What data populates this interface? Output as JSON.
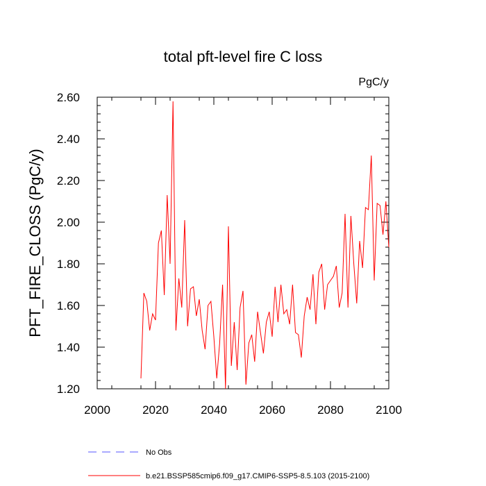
{
  "chart_data": {
    "type": "line",
    "title": "total pft-level fire C loss",
    "units": "PgC/y",
    "xlabel": "",
    "ylabel": "PFT_FIRE_CLOSS  (PgC/y)",
    "xlim": [
      2000,
      2100
    ],
    "ylim": [
      1.2,
      2.6
    ],
    "xticks": [
      2000,
      2020,
      2040,
      2060,
      2080,
      2100
    ],
    "xtick_labels": [
      "2000",
      "2020",
      "2040",
      "2060",
      "2080",
      "2100"
    ],
    "yticks": [
      1.2,
      1.4,
      1.6,
      1.8,
      2.0,
      2.2,
      2.4,
      2.6
    ],
    "ytick_labels": [
      "1.20",
      "1.40",
      "1.60",
      "1.80",
      "2.00",
      "2.20",
      "2.40",
      "2.60"
    ],
    "legend": [
      {
        "label": "No Obs",
        "color": "#5555ff",
        "style": "dashed"
      },
      {
        "label": "b.e21.BSSP585cmip6.f09_g17.CMIP6-SSP5-8.5.103 (2015-2100)",
        "color": "#ff0000",
        "style": "solid"
      }
    ],
    "series": [
      {
        "name": "b.e21.BSSP585cmip6.f09_g17.CMIP6-SSP5-8.5.103 (2015-2100)",
        "color": "#ff0000",
        "x": [
          2015,
          2016,
          2017,
          2018,
          2019,
          2020,
          2021,
          2022,
          2023,
          2024,
          2025,
          2026,
          2027,
          2028,
          2029,
          2030,
          2031,
          2032,
          2033,
          2034,
          2035,
          2036,
          2037,
          2038,
          2039,
          2040,
          2041,
          2042,
          2043,
          2044,
          2045,
          2046,
          2047,
          2048,
          2049,
          2050,
          2051,
          2052,
          2053,
          2054,
          2055,
          2056,
          2057,
          2058,
          2059,
          2060,
          2061,
          2062,
          2063,
          2064,
          2065,
          2066,
          2067,
          2068,
          2069,
          2070,
          2071,
          2072,
          2073,
          2074,
          2075,
          2076,
          2077,
          2078,
          2079,
          2080,
          2081,
          2082,
          2083,
          2084,
          2085,
          2086,
          2087,
          2088,
          2089,
          2090,
          2091,
          2092,
          2093,
          2094,
          2095,
          2096,
          2097,
          2098,
          2099,
          2100
        ],
        "values": [
          1.25,
          1.66,
          1.62,
          1.48,
          1.56,
          1.53,
          1.9,
          1.96,
          1.65,
          2.13,
          1.8,
          2.58,
          1.48,
          1.73,
          1.59,
          2.01,
          1.5,
          1.68,
          1.69,
          1.55,
          1.63,
          1.48,
          1.39,
          1.6,
          1.62,
          1.45,
          1.25,
          1.42,
          1.7,
          1.2,
          1.98,
          1.31,
          1.52,
          1.29,
          1.59,
          1.67,
          1.22,
          1.42,
          1.46,
          1.33,
          1.57,
          1.47,
          1.37,
          1.52,
          1.57,
          1.45,
          1.69,
          1.52,
          1.7,
          1.56,
          1.58,
          1.51,
          1.7,
          1.47,
          1.46,
          1.35,
          1.55,
          1.64,
          1.58,
          1.75,
          1.51,
          1.76,
          1.8,
          1.58,
          1.7,
          1.72,
          1.74,
          1.79,
          1.59,
          1.66,
          2.04,
          1.59,
          2.03,
          1.8,
          1.61,
          1.91,
          1.78,
          2.07,
          2.06,
          2.32,
          1.72,
          2.09,
          2.08,
          1.94,
          2.1,
          1.88
        ]
      }
    ]
  }
}
